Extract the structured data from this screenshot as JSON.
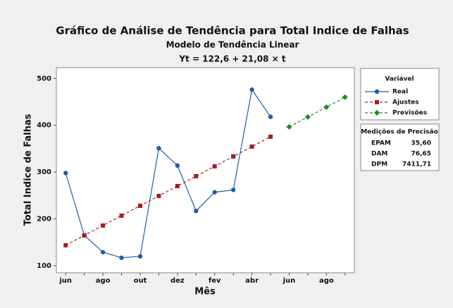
{
  "chart_data": {
    "type": "line",
    "title": "Gráfico de Análise de Tendência para Total Indice de Falhas",
    "subtitle": "Modelo de Tendência Linear",
    "equation": "Yt = 122,6 + 21,08 × t",
    "x_label": "Mês",
    "y_label": "Total Indice de Falhas",
    "categories": [
      "jun",
      null,
      "ago",
      null,
      "out",
      null,
      "dez",
      null,
      "fev",
      null,
      "abr",
      null,
      "jun",
      null,
      "ago",
      null
    ],
    "ylim": [
      85,
      523
    ],
    "yticks": [
      100,
      200,
      300,
      400,
      500
    ],
    "legend_title": "Variável",
    "series": [
      {
        "name": "Real",
        "color": "#1f5ea8",
        "marker": "circle",
        "linestyle": "solid",
        "values": [
          298,
          165,
          129,
          117,
          120,
          351,
          314,
          217,
          257,
          262,
          476,
          418,
          null,
          null,
          null,
          null
        ]
      },
      {
        "name": "Ajustes",
        "color": "#a31f1f",
        "marker": "square",
        "linestyle": "dashed",
        "values": [
          143.68,
          164.76,
          185.84,
          206.92,
          228.0,
          249.08,
          270.16,
          291.24,
          312.32,
          333.4,
          354.48,
          375.56,
          null,
          null,
          null,
          null
        ]
      },
      {
        "name": "Previsões",
        "color": "#1b8a1b",
        "marker": "diamond",
        "linestyle": "dashed",
        "values": [
          null,
          null,
          null,
          null,
          null,
          null,
          null,
          null,
          null,
          null,
          null,
          null,
          396.64,
          417.72,
          438.8,
          459.88
        ]
      }
    ],
    "precision": {
      "title": "Medições de Precisão",
      "rows": [
        {
          "label": "EPAM",
          "value": "35,60"
        },
        {
          "label": "DAM",
          "value": "76,65"
        },
        {
          "label": "DPM",
          "value": "7411,71"
        }
      ]
    }
  }
}
